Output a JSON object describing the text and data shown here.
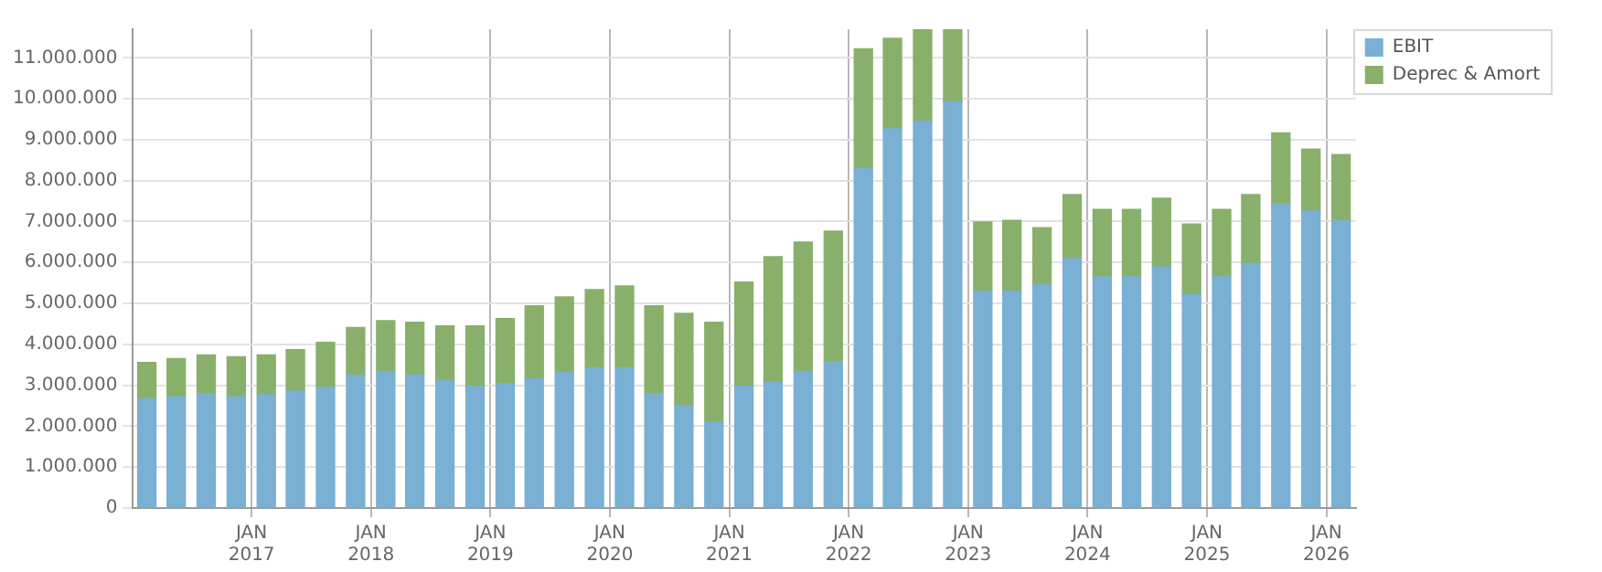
{
  "chart_data": {
    "type": "bar",
    "stacked": true,
    "legend": "top right",
    "grid": true,
    "x": [
      "2016-02-15",
      "2016-05-15",
      "2016-08-15",
      "2016-11-15",
      "2017-02-15",
      "2017-05-15",
      "2017-08-15",
      "2017-11-15",
      "2018-02-15",
      "2018-05-15",
      "2018-08-15",
      "2018-11-15",
      "2019-02-15",
      "2019-05-15",
      "2019-08-15",
      "2019-11-15",
      "2020-02-15",
      "2020-05-15",
      "2020-08-15",
      "2020-11-15",
      "2021-02-15",
      "2021-05-15",
      "2021-08-15",
      "2021-11-15",
      "2022-02-15",
      "2022-05-15",
      "2022-08-15",
      "2022-11-15",
      "2023-02-15",
      "2023-05-15",
      "2023-08-15",
      "2023-11-15",
      "2024-02-15",
      "2024-05-15",
      "2024-08-15",
      "2024-11-15",
      "2025-02-15",
      "2025-05-15",
      "2025-08-15",
      "2025-11-15",
      "2026-02-15"
    ],
    "series": [
      {
        "name": "EBIT",
        "color": "#79b0d3",
        "values": [
          2670000,
          2720000,
          2800000,
          2720000,
          2770000,
          2860000,
          2950000,
          3250000,
          3340000,
          3250000,
          3130000,
          2980000,
          3040000,
          3160000,
          3310000,
          3430000,
          3430000,
          2800000,
          2510000,
          2090000,
          2980000,
          3070000,
          3340000,
          3580000,
          8290000,
          9270000,
          9450000,
          9930000,
          5300000,
          5300000,
          5470000,
          6100000,
          5650000,
          5650000,
          5890000,
          5210000,
          5650000,
          5980000,
          7430000,
          7260000,
          7030000
        ]
      },
      {
        "name": "Deprec & Amort",
        "color": "#89b06a",
        "values": [
          890000,
          930000,
          940000,
          980000,
          970000,
          1010000,
          1100000,
          1160000,
          1240000,
          1290000,
          1320000,
          1470000,
          1590000,
          1780000,
          1850000,
          1910000,
          2000000,
          2140000,
          2250000,
          2450000,
          2540000,
          3070000,
          3160000,
          3190000,
          2930000,
          2210000,
          2250000,
          1770000,
          1690000,
          1730000,
          1380000,
          1560000,
          1650000,
          1650000,
          1680000,
          1730000,
          1650000,
          1680000,
          1740000,
          1510000,
          1610000
        ]
      }
    ],
    "xlim": [
      "2016-01",
      "2026-04"
    ],
    "xticks": [
      {
        "value": "2017-01",
        "label": "JAN 2017"
      },
      {
        "value": "2018-01",
        "label": "JAN 2018"
      },
      {
        "value": "2019-01",
        "label": "JAN 2019"
      },
      {
        "value": "2020-01",
        "label": "JAN 2020"
      },
      {
        "value": "2021-01",
        "label": "JAN 2021"
      },
      {
        "value": "2022-01",
        "label": "JAN 2022"
      },
      {
        "value": "2023-01",
        "label": "JAN 2023"
      },
      {
        "value": "2024-01",
        "label": "JAN 2024"
      },
      {
        "value": "2025-01",
        "label": "JAN 2025"
      },
      {
        "value": "2026-01",
        "label": "JAN 2026"
      }
    ],
    "ylim": [
      0,
      11700000
    ],
    "yticks": [
      0,
      {
        "value": 1000000,
        "label": "1.000.000"
      },
      {
        "value": 2000000,
        "label": "2.000.000"
      },
      {
        "value": 3000000,
        "label": "3.000.000"
      },
      {
        "value": 4000000,
        "label": "4.000.000"
      },
      {
        "value": 5000000,
        "label": "5.000.000"
      },
      {
        "value": 6000000,
        "label": "6.000.000"
      },
      {
        "value": 7000000,
        "label": "7.000.000"
      },
      {
        "value": 8000000,
        "label": "8.000.000"
      },
      {
        "value": 9000000,
        "label": "9.000.000"
      },
      {
        "value": 10000000,
        "label": "10.000.000"
      },
      {
        "value": 11000000,
        "label": "11.000.000"
      }
    ]
  }
}
